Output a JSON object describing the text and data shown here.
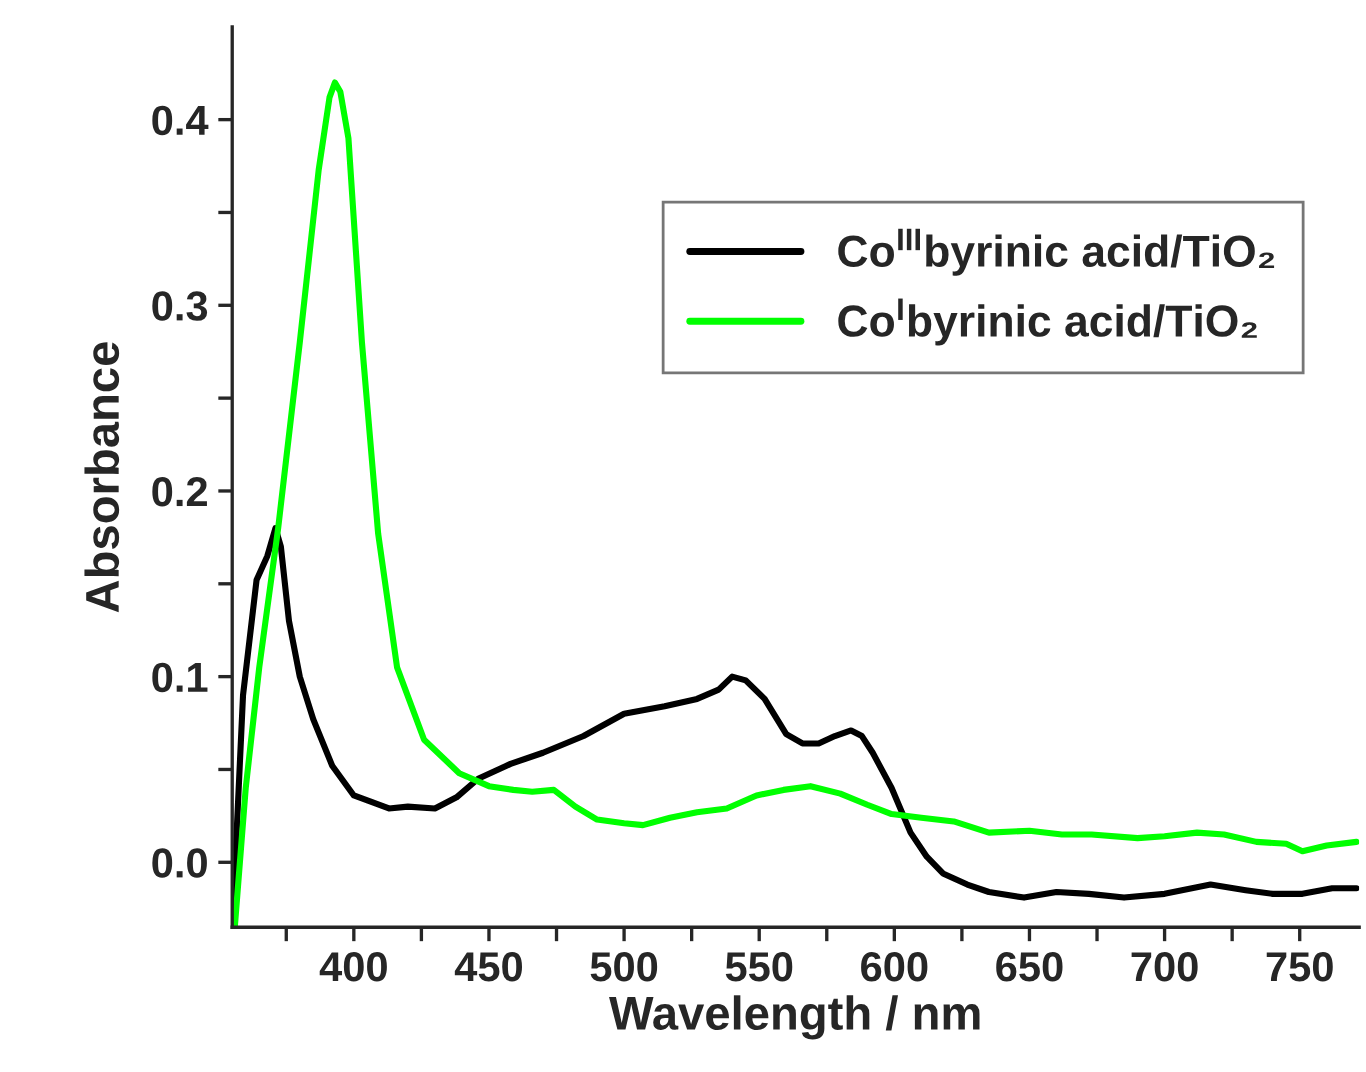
{
  "chart_data": {
    "type": "line",
    "xlabel": "Wavelength / nm",
    "ylabel": "Absorbance",
    "xlim": [
      355,
      772
    ],
    "xticks": [
      {
        "value": 375,
        "label": null
      },
      400,
      {
        "value": 425,
        "label": null
      },
      450,
      {
        "value": 475,
        "label": null
      },
      500,
      {
        "value": 525,
        "label": null
      },
      550,
      {
        "value": 575,
        "label": null
      },
      600,
      {
        "value": 625,
        "label": null
      },
      650,
      {
        "value": 675,
        "label": null
      },
      700,
      {
        "value": 725,
        "label": null
      },
      750
    ],
    "ylim": [
      -0.035,
      0.45
    ],
    "yticks": [
      {
        "value": 0.0,
        "label": "0.0"
      },
      {
        "value": 0.05,
        "label": null
      },
      0.1,
      {
        "value": 0.15,
        "label": null
      },
      0.2,
      {
        "value": 0.25,
        "label": null
      },
      0.3,
      {
        "value": 0.35,
        "label": null
      },
      0.4
    ],
    "grid": false,
    "legend": "top right",
    "line_style": "solid",
    "marker": "none",
    "series": [
      {
        "name": "Co$^{III}$byrinic acid/TiO₂",
        "color": "#000000",
        "x": [
          355,
          359,
          364,
          368,
          371,
          373,
          376,
          380,
          385,
          392,
          400,
          413,
          420,
          430,
          438,
          446,
          458,
          470,
          485,
          500,
          515,
          527,
          535,
          540,
          545,
          552,
          560,
          566,
          572,
          578,
          584,
          588,
          592,
          599,
          606,
          612,
          618,
          627,
          635,
          648,
          660,
          672,
          685,
          700,
          717,
          730,
          740,
          751,
          762,
          771
        ],
        "values": [
          -0.035,
          0.09,
          0.152,
          0.165,
          0.18,
          0.17,
          0.13,
          0.1,
          0.077,
          0.052,
          0.036,
          0.029,
          0.03,
          0.029,
          0.035,
          0.045,
          0.053,
          0.059,
          0.068,
          0.08,
          0.084,
          0.088,
          0.093,
          0.1,
          0.098,
          0.088,
          0.069,
          0.064,
          0.064,
          0.068,
          0.071,
          0.068,
          0.059,
          0.04,
          0.016,
          0.003,
          -0.006,
          -0.012,
          -0.016,
          -0.019,
          -0.016,
          -0.017,
          -0.019,
          -0.017,
          -0.012,
          -0.015,
          -0.017,
          -0.017,
          -0.014,
          -0.014
        ]
      },
      {
        "name": "Co$^{I}$byrinic acid/TiO₂",
        "color": "#00ff00",
        "x": [
          356,
          360,
          365,
          372,
          380,
          387,
          391,
          393,
          395,
          398,
          403,
          409,
          416,
          426,
          439,
          450,
          459,
          466,
          474,
          482,
          490,
          500,
          507,
          517,
          527,
          538,
          549,
          559,
          569,
          580,
          590,
          599,
          610,
          622,
          635,
          650,
          662,
          673,
          690,
          700,
          712,
          722,
          734,
          745,
          751,
          760,
          771
        ],
        "values": [
          -0.034,
          0.04,
          0.105,
          0.18,
          0.28,
          0.373,
          0.412,
          0.42,
          0.415,
          0.39,
          0.28,
          0.177,
          0.105,
          0.066,
          0.048,
          0.041,
          0.039,
          0.038,
          0.039,
          0.03,
          0.023,
          0.021,
          0.02,
          0.024,
          0.027,
          0.029,
          0.036,
          0.039,
          0.041,
          0.037,
          0.031,
          0.026,
          0.024,
          0.022,
          0.016,
          0.017,
          0.015,
          0.015,
          0.013,
          0.014,
          0.016,
          0.015,
          0.011,
          0.01,
          0.006,
          0.009,
          0.011
        ]
      }
    ]
  }
}
